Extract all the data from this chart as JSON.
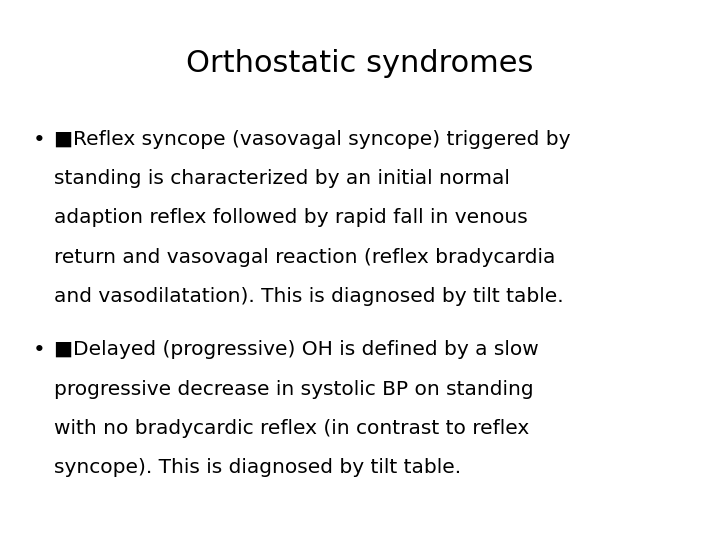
{
  "title": "Orthostatic syndromes",
  "title_fontsize": 22,
  "title_color": "#000000",
  "background_color": "#ffffff",
  "bullet1_lines": [
    "■Reflex syncope (vasovagal syncope) triggered by",
    "standing is characterized by an initial normal",
    "adaption reflex followed by rapid fall in venous",
    "return and vasovagal reaction (reflex bradycardia",
    "and vasodilatation). This is diagnosed by tilt table."
  ],
  "bullet2_lines": [
    "■Delayed (progressive) OH is defined by a slow",
    "progressive decrease in systolic BP on standing",
    "with no bradycardic reflex (in contrast to reflex",
    "syncope). This is diagnosed by tilt table."
  ],
  "body_fontsize": 14.5,
  "body_color": "#000000",
  "font_family": "DejaVu Sans"
}
